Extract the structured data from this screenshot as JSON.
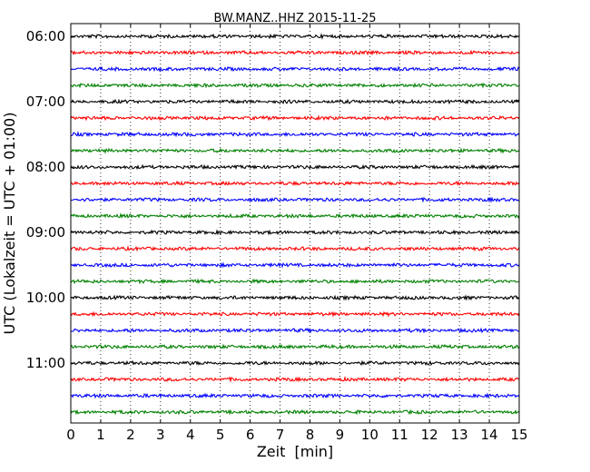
{
  "chart_data": {
    "type": "line",
    "title": "BW.MANZ..HHZ 2015-11-25",
    "xlabel": "Zeit  [min]",
    "ylabel": "UTC (Lokalzeit = UTC + 01:00)",
    "xlim": [
      0,
      15
    ],
    "x_ticks": [
      "0",
      "1",
      "2",
      "3",
      "4",
      "5",
      "6",
      "7",
      "8",
      "9",
      "10",
      "11",
      "12",
      "13",
      "14",
      "15"
    ],
    "y_ticks": [
      "06:00",
      "07:00",
      "08:00",
      "09:00",
      "10:00",
      "11:00"
    ],
    "grid": "vertical-dotted",
    "trace_colors": [
      "#000000",
      "#ff0000",
      "#0000ff",
      "#008000"
    ],
    "traces": [
      {
        "start": "06:00",
        "color": "#000000"
      },
      {
        "start": "06:15",
        "color": "#ff0000"
      },
      {
        "start": "06:30",
        "color": "#0000ff"
      },
      {
        "start": "06:45",
        "color": "#008000"
      },
      {
        "start": "07:00",
        "color": "#000000"
      },
      {
        "start": "07:15",
        "color": "#ff0000"
      },
      {
        "start": "07:30",
        "color": "#0000ff"
      },
      {
        "start": "07:45",
        "color": "#008000"
      },
      {
        "start": "08:00",
        "color": "#000000"
      },
      {
        "start": "08:15",
        "color": "#ff0000"
      },
      {
        "start": "08:30",
        "color": "#0000ff"
      },
      {
        "start": "08:45",
        "color": "#008000"
      },
      {
        "start": "09:00",
        "color": "#000000"
      },
      {
        "start": "09:15",
        "color": "#ff0000"
      },
      {
        "start": "09:30",
        "color": "#0000ff"
      },
      {
        "start": "09:45",
        "color": "#008000"
      },
      {
        "start": "10:00",
        "color": "#000000"
      },
      {
        "start": "10:15",
        "color": "#ff0000"
      },
      {
        "start": "10:30",
        "color": "#0000ff"
      },
      {
        "start": "10:45",
        "color": "#008000"
      },
      {
        "start": "11:00",
        "color": "#000000"
      },
      {
        "start": "11:15",
        "color": "#ff0000"
      },
      {
        "start": "11:30",
        "color": "#0000ff"
      },
      {
        "start": "11:45",
        "color": "#008000"
      }
    ]
  }
}
